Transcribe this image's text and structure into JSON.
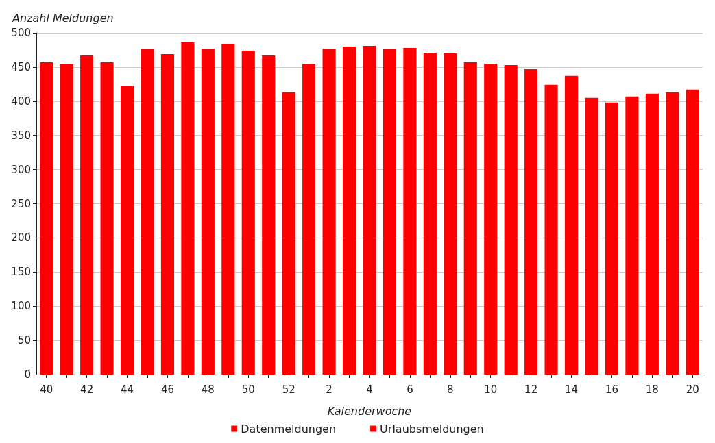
{
  "chart_data": {
    "type": "bar",
    "xlabel": "Kalenderwoche",
    "ylabel": "Anzahl Meldungen",
    "categories": [
      "40",
      null,
      "42",
      null,
      "44",
      null,
      "46",
      null,
      "48",
      null,
      "50",
      null,
      "52",
      null,
      "2",
      null,
      "4",
      null,
      "6",
      null,
      "8",
      null,
      "10",
      null,
      "12",
      null,
      "14",
      null,
      "16",
      null,
      "18",
      null,
      "20"
    ],
    "stacked": true,
    "series": [
      {
        "name": "Datenmeldungen",
        "color": "#ff0000",
        "values": [
          457,
          454,
          467,
          457,
          422,
          476,
          469,
          486,
          477,
          484,
          474,
          467,
          413,
          455,
          477,
          480,
          481,
          476,
          478,
          471,
          470,
          457,
          455,
          453,
          447,
          424,
          437,
          405,
          398,
          407,
          411,
          413,
          417
        ]
      },
      {
        "name": "Urlaubsmeldungen",
        "color": "#ff0000",
        "values": [
          null,
          null,
          null,
          null,
          null,
          null,
          null,
          null,
          null,
          null,
          null,
          null,
          null,
          null,
          null,
          null,
          null,
          null,
          null,
          null,
          null,
          null,
          null,
          null,
          null,
          null,
          null,
          null,
          null,
          null,
          null,
          null,
          null
        ]
      }
    ],
    "ylim": [
      0,
      500
    ],
    "yticks": [
      0,
      50,
      100,
      150,
      200,
      250,
      300,
      350,
      400,
      450,
      500
    ],
    "grid": "y",
    "legend": "bottom"
  }
}
